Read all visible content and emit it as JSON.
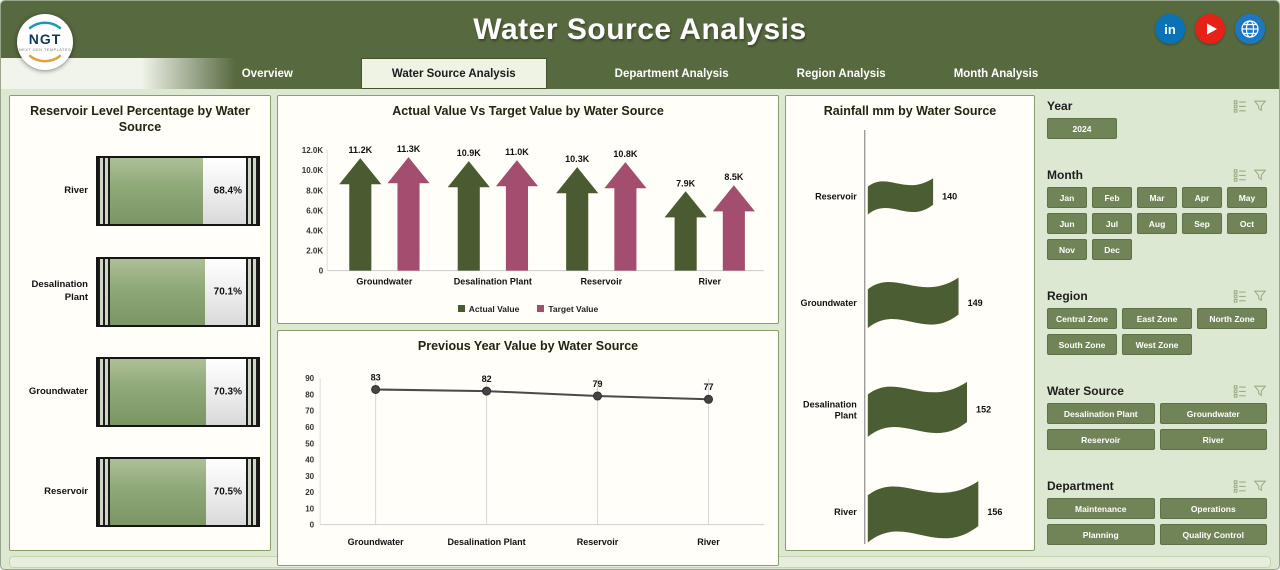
{
  "header": {
    "title": "Water Source Analysis",
    "logo_text": "NGT",
    "logo_sub": "NEXT GEN TEMPLATES"
  },
  "social": [
    {
      "name": "linkedin",
      "glyph": "in",
      "color": "#0a73b8"
    },
    {
      "name": "youtube",
      "color": "#e62117"
    },
    {
      "name": "website",
      "color": "#1b79c4"
    }
  ],
  "tabs": [
    {
      "label": "Overview",
      "active": false
    },
    {
      "label": "Water Source Analysis",
      "active": true
    },
    {
      "label": "Department Analysis",
      "active": false
    },
    {
      "label": "Region Analysis",
      "active": false
    },
    {
      "label": "Month Analysis",
      "active": false
    }
  ],
  "chart_data": [
    {
      "id": "reservoir_level",
      "type": "bar",
      "title": "Reservoir Level Percentage by Water Source",
      "categories": [
        "River",
        "Desalination Plant",
        "Groundwater",
        "Reservoir"
      ],
      "values": [
        68.4,
        70.1,
        70.3,
        70.5
      ],
      "value_labels": [
        "68.4%",
        "70.1%",
        "70.3%",
        "70.5%"
      ],
      "xlim": [
        0,
        100
      ],
      "color": "#8ea877"
    },
    {
      "id": "actual_vs_target",
      "type": "bar",
      "title": "Actual Value Vs Target Value by Water Source",
      "categories": [
        "Groundwater",
        "Desalination Plant",
        "Reservoir",
        "River"
      ],
      "series": [
        {
          "name": "Actual Value",
          "color": "#4a5b32",
          "values": [
            11200,
            10900,
            10300,
            7900
          ],
          "labels": [
            "11.2K",
            "10.9K",
            "10.3K",
            "7.9K"
          ]
        },
        {
          "name": "Target Value",
          "color": "#a34e6e",
          "values": [
            11300,
            11000,
            10800,
            8500
          ],
          "labels": [
            "11.3K",
            "11.0K",
            "10.8K",
            "8.5K"
          ]
        }
      ],
      "ylim": [
        0,
        12000
      ],
      "ytick_labels": [
        "0",
        "2.0K",
        "4.0K",
        "6.0K",
        "8.0K",
        "10.0K",
        "12.0K"
      ],
      "legend_position": "bottom"
    },
    {
      "id": "previous_year",
      "type": "line",
      "title": "Previous Year Value by Water Source",
      "categories": [
        "Groundwater",
        "Desalination Plant",
        "Reservoir",
        "River"
      ],
      "values": [
        83,
        82,
        79,
        77
      ],
      "ylim": [
        0,
        90
      ],
      "yticks": [
        0,
        10,
        20,
        30,
        40,
        50,
        60,
        70,
        80,
        90
      ],
      "color": "#4a4a4a"
    },
    {
      "id": "rainfall",
      "type": "area",
      "title": "Rainfall mm by Water Source",
      "categories": [
        "Reservoir",
        "Groundwater",
        "Desalination Plant",
        "River"
      ],
      "values": [
        140,
        149,
        152,
        156
      ],
      "color": "#4b5d33"
    }
  ],
  "filters": {
    "sections": [
      {
        "title": "Year",
        "options": [
          "2024"
        ]
      },
      {
        "title": "Month",
        "options": [
          "Jan",
          "Feb",
          "Mar",
          "Apr",
          "May",
          "Jun",
          "Jul",
          "Aug",
          "Sep",
          "Oct",
          "Nov",
          "Dec"
        ]
      },
      {
        "title": "Region",
        "options": [
          "Central Zone",
          "East Zone",
          "North Zone",
          "South Zone",
          "West Zone"
        ]
      },
      {
        "title": "Water Source",
        "options": [
          "Desalination Plant",
          "Groundwater",
          "Reservoir",
          "River"
        ]
      },
      {
        "title": "Department",
        "options": [
          "Maintenance",
          "Operations",
          "Planning",
          "Quality Control"
        ]
      }
    ]
  },
  "colors": {
    "header_bg": "#57693f",
    "page_bg": "#dde8d2",
    "panel_border": "#8a9e6a",
    "button": "#718457",
    "actual_value": "#4a5b32",
    "target_value": "#a34e6e",
    "rainfall_shape": "#4b5d33",
    "battery_fill": "#8ea877"
  }
}
